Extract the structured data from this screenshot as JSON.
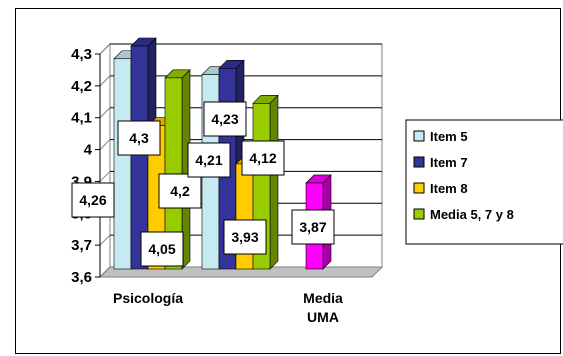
{
  "chart_data": {
    "type": "bar",
    "categories": [
      "Psicología",
      "Media UMA"
    ],
    "category_lines": [
      [
        "Psicología"
      ],
      [
        "Media",
        "UMA"
      ]
    ],
    "series": [
      {
        "name": "Item 5",
        "values": [
          4.26,
          null
        ],
        "color": "#c6eaf2"
      },
      {
        "name": "Item 7",
        "values": [
          4.3,
          null
        ],
        "color": "#333399"
      },
      {
        "name": "Item 8",
        "values": [
          4.05,
          null
        ],
        "color": "#ffcc00"
      },
      {
        "name": "Media 5, 7 y 8",
        "values": [
          4.2,
          3.87
        ],
        "color": "#99cc00"
      }
    ],
    "extra_bars": [
      {
        "label": "4,21",
        "value": 4.21,
        "color": "#c6eaf2"
      },
      {
        "label": "4,23",
        "value": 4.23,
        "color": "#333399"
      },
      {
        "label": "3,93",
        "value": 3.93,
        "color": "#ffcc00"
      },
      {
        "label": "4,12",
        "value": 4.12,
        "color": "#99cc00"
      }
    ],
    "uma_bar_color": "#ff00ff",
    "data_labels": [
      "4,26",
      "4,3",
      "4,05",
      "4,2",
      "3,87"
    ],
    "ylim": [
      3.6,
      4.3
    ],
    "yticks": [
      "3,6",
      "3,7",
      "3,8",
      "3,9",
      "4",
      "4,1",
      "4,2",
      "4,3"
    ],
    "ytick_values": [
      3.6,
      3.7,
      3.8,
      3.9,
      4.0,
      4.1,
      4.2,
      4.3
    ],
    "grid": true,
    "legend_position": "right",
    "title": "",
    "xlabel": "",
    "ylabel": ""
  }
}
